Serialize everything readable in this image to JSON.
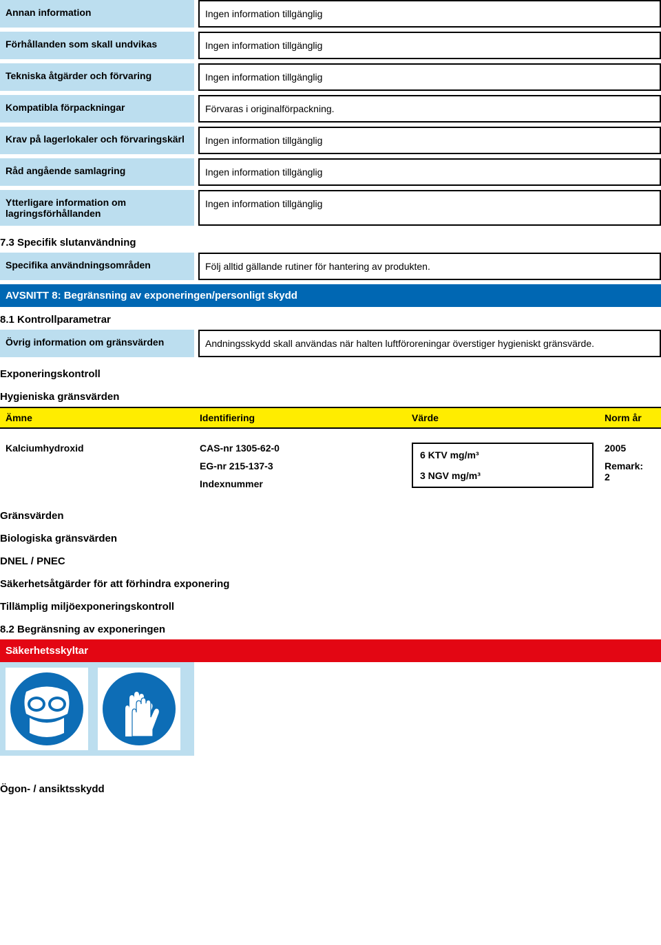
{
  "colors": {
    "label_bg": "#bcdeef",
    "section_blue": "#0067b3",
    "section_red": "#e30613",
    "table_header_bg": "#ffed00",
    "pictogram_blue": "#0d6db6",
    "border": "#000000"
  },
  "rows_top": [
    {
      "label": "Annan information",
      "value": "Ingen information tillgänglig"
    },
    {
      "label": "Förhållanden som skall undvikas",
      "value": "Ingen information tillgänglig"
    },
    {
      "label": "Tekniska åtgärder och förvaring",
      "value": "Ingen information tillgänglig"
    },
    {
      "label": "Kompatibla förpackningar",
      "value": "Förvaras i originalförpackning."
    },
    {
      "label": "Krav på lagerlokaler och förvaringskärl",
      "value": "Ingen information tillgänglig"
    },
    {
      "label": "Råd angående samlagring",
      "value": "Ingen information tillgänglig"
    },
    {
      "label": "Ytterligare information om lagringsförhållanden",
      "value": "Ingen information tillgänglig"
    }
  ],
  "subsection_73": "7.3 Specifik slutanvändning",
  "row_specific": {
    "label": "Specifika användningsområden",
    "value": "Följ alltid gällande rutiner för hantering av produkten."
  },
  "section8_title": "AVSNITT 8: Begränsning av exponeringen/personligt skydd",
  "subsection_81": "8.1 Kontrollparametrar",
  "row_ovrig": {
    "label": "Övrig information om gränsvärden",
    "value": "Andningsskydd skall användas när halten luftföroreningar överstiger hygieniskt gränsvärde."
  },
  "heading_exponering": "Exponeringskontroll",
  "heading_hygien": "Hygieniska gränsvärden",
  "table_headers": {
    "c1": "Ämne",
    "c2": "Identifiering",
    "c3": "Värde",
    "c4": "Norm år"
  },
  "table_row": {
    "amne": "Kalciumhydroxid",
    "id_cas": "CAS-nr 1305-62-0",
    "id_eg": "EG-nr 215-137-3",
    "id_index": "Indexnummer",
    "val1": "6 KTV mg/m³",
    "val2": "3 NGV mg/m³",
    "norm_year": "2005",
    "remark_label": "Remark:",
    "remark_val": "2"
  },
  "headings_after": [
    "Gränsvärden",
    "Biologiska gränsvärden",
    "DNEL / PNEC",
    "Säkerhetsåtgärder för att förhindra exponering",
    "Tillämplig miljöexponeringskontroll"
  ],
  "subsection_82": "8.2 Begränsning av exponeringen",
  "section_skyltar": "Säkerhetsskyltar",
  "heading_ogon": "Ögon- / ansiktsskydd"
}
